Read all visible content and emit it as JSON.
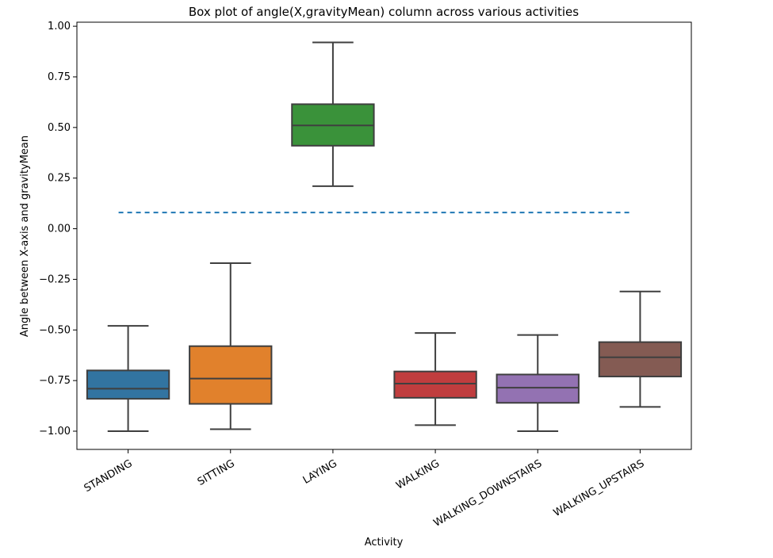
{
  "chart_data": {
    "type": "box",
    "title": "Box plot of angle(X,gravityMean) column across various activities",
    "xlabel": "Activity",
    "ylabel": "Angle between X-axis and gravityMean",
    "ylim": [
      -1.09,
      1.02
    ],
    "yticks": [
      -1.0,
      -0.75,
      -0.5,
      -0.25,
      0.0,
      0.25,
      0.5,
      0.75,
      1.0
    ],
    "ytick_labels": [
      "−1.00",
      "−0.75",
      "−0.50",
      "−0.25",
      "0.00",
      "0.25",
      "0.50",
      "0.75",
      "1.00"
    ],
    "categories": [
      "STANDING",
      "SITTING",
      "LAYING",
      "WALKING",
      "WALKING_DOWNSTAIRS",
      "WALKING_UPSTAIRS"
    ],
    "boxes": [
      {
        "whisker_low": -1.0,
        "q1": -0.84,
        "median": -0.79,
        "q3": -0.7,
        "whisker_high": -0.48,
        "color": "#3274a1"
      },
      {
        "whisker_low": -0.99,
        "q1": -0.865,
        "median": -0.74,
        "q3": -0.58,
        "whisker_high": -0.17,
        "color": "#e1812c"
      },
      {
        "whisker_low": 0.21,
        "q1": 0.41,
        "median": 0.51,
        "q3": 0.615,
        "whisker_high": 0.92,
        "color": "#3a923a"
      },
      {
        "whisker_low": -0.97,
        "q1": -0.835,
        "median": -0.765,
        "q3": -0.705,
        "whisker_high": -0.515,
        "color": "#c03d3e"
      },
      {
        "whisker_low": -1.0,
        "q1": -0.86,
        "median": -0.785,
        "q3": -0.72,
        "whisker_high": -0.525,
        "color": "#9372b2"
      },
      {
        "whisker_low": -0.88,
        "q1": -0.73,
        "median": -0.635,
        "q3": -0.56,
        "whisker_high": -0.31,
        "color": "#845b53"
      }
    ],
    "reference_line": {
      "y": 0.08,
      "style": "dashed",
      "color": "#1f77b4"
    },
    "grid": false,
    "legend": "none"
  }
}
